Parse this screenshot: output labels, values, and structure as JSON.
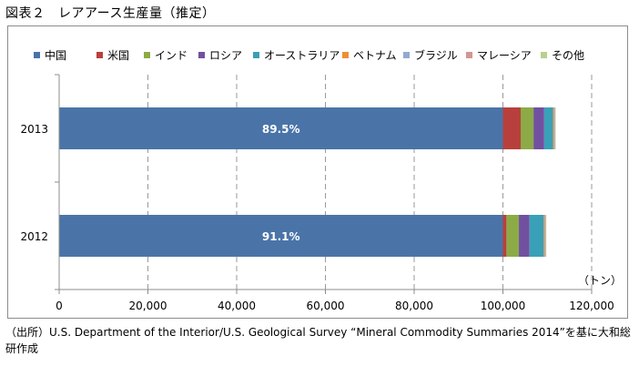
{
  "figure_title": "図表２　レアアース生産量（推定）",
  "source_note": "（出所）U.S. Department of the Interior/U.S. Geological Survey “Mineral Commodity Summaries 2014”を基に大和総研作成",
  "chart_data": {
    "type": "bar",
    "orientation": "horizontal",
    "stacked": true,
    "title": "",
    "xlabel": "",
    "ylabel": "",
    "unit_label": "（トン）",
    "xlim": [
      0,
      120000
    ],
    "xticks": [
      0,
      20000,
      40000,
      60000,
      80000,
      100000,
      120000
    ],
    "xtick_labels": [
      "0",
      "20,000",
      "40,000",
      "60,000",
      "80,000",
      "100,000",
      "120,000"
    ],
    "grid": "vertical dashed",
    "legend_position": "top",
    "categories": [
      "2013",
      "2012"
    ],
    "series": [
      {
        "name": "中国",
        "color": "#4a74a8",
        "values": [
          100000,
          100000
        ]
      },
      {
        "name": "米国",
        "color": "#b8403c",
        "values": [
          4000,
          800
        ]
      },
      {
        "name": "インド",
        "color": "#8cab46",
        "values": [
          2900,
          2800
        ]
      },
      {
        "name": "ロシア",
        "color": "#7150a0",
        "values": [
          2400,
          2400
        ]
      },
      {
        "name": "オーストラリア",
        "color": "#3aa0b8",
        "values": [
          2000,
          3200
        ]
      },
      {
        "name": "ベトナム",
        "color": "#ee8f35",
        "values": [
          220,
          220
        ]
      },
      {
        "name": "ブラジル",
        "color": "#93a9d1",
        "values": [
          140,
          140
        ]
      },
      {
        "name": "マレーシア",
        "color": "#d49694",
        "values": [
          100,
          100
        ]
      },
      {
        "name": "その他",
        "color": "#b9d08e",
        "values": [
          100,
          100
        ]
      }
    ],
    "data_labels": [
      {
        "category": "2013",
        "series": "中国",
        "text": "89.5%"
      },
      {
        "category": "2012",
        "series": "中国",
        "text": "91.1%"
      }
    ]
  }
}
